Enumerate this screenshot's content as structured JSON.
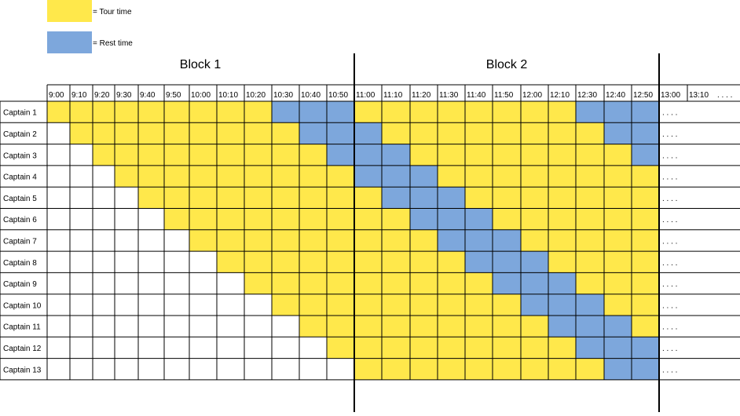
{
  "legend": [
    {
      "label": "= Tour time",
      "color": "#FFE84B"
    },
    {
      "label": "= Rest time",
      "color": "#7DA7DC"
    }
  ],
  "blocks": [
    "Block 1",
    "Block 2"
  ],
  "times": [
    "9:00",
    "9:10",
    "9:20",
    "9:30",
    "9:40",
    "9:50",
    "10:00",
    "10:10",
    "10:20",
    "10:30",
    "10:40",
    "10:50",
    "11:00",
    "11:10",
    "11:20",
    "11:30",
    "11:40",
    "11:50",
    "12:00",
    "12:10",
    "12:30",
    "12:40",
    "12:50",
    "13:00",
    "13:10"
  ],
  "times_more": ". . . .",
  "row_more": ". . . .",
  "captains": [
    {
      "name": "Captain 1",
      "segments": [
        [
          0,
          8,
          "tour"
        ],
        [
          9,
          11,
          "rest"
        ],
        [
          12,
          19,
          "tour"
        ],
        [
          20,
          22,
          "rest"
        ]
      ]
    },
    {
      "name": "Captain 2",
      "segments": [
        [
          1,
          9,
          "tour"
        ],
        [
          10,
          11,
          "rest"
        ],
        [
          12,
          12,
          "rest"
        ],
        [
          13,
          20,
          "tour"
        ],
        [
          21,
          22,
          "rest"
        ]
      ]
    },
    {
      "name": "Captain 3",
      "segments": [
        [
          2,
          10,
          "tour"
        ],
        [
          11,
          11,
          "rest"
        ],
        [
          12,
          13,
          "rest"
        ],
        [
          14,
          21,
          "tour"
        ],
        [
          22,
          22,
          "rest"
        ]
      ]
    },
    {
      "name": "Captain 4",
      "segments": [
        [
          3,
          11,
          "tour"
        ],
        [
          12,
          14,
          "rest"
        ],
        [
          15,
          22,
          "tour"
        ]
      ]
    },
    {
      "name": "Captain 5",
      "segments": [
        [
          4,
          11,
          "tour"
        ],
        [
          12,
          12,
          "tour"
        ],
        [
          13,
          15,
          "rest"
        ],
        [
          16,
          22,
          "tour"
        ]
      ]
    },
    {
      "name": "Captain 6",
      "segments": [
        [
          5,
          11,
          "tour"
        ],
        [
          12,
          13,
          "tour"
        ],
        [
          14,
          16,
          "rest"
        ],
        [
          17,
          22,
          "tour"
        ]
      ]
    },
    {
      "name": "Captain 7",
      "segments": [
        [
          6,
          11,
          "tour"
        ],
        [
          12,
          14,
          "tour"
        ],
        [
          15,
          17,
          "rest"
        ],
        [
          18,
          22,
          "tour"
        ]
      ]
    },
    {
      "name": "Captain 8",
      "segments": [
        [
          7,
          11,
          "tour"
        ],
        [
          12,
          15,
          "tour"
        ],
        [
          16,
          18,
          "rest"
        ],
        [
          19,
          22,
          "tour"
        ]
      ]
    },
    {
      "name": "Captain 9",
      "segments": [
        [
          8,
          11,
          "tour"
        ],
        [
          12,
          16,
          "tour"
        ],
        [
          17,
          19,
          "rest"
        ],
        [
          20,
          22,
          "tour"
        ]
      ]
    },
    {
      "name": "Captain 10",
      "segments": [
        [
          9,
          11,
          "tour"
        ],
        [
          12,
          17,
          "tour"
        ],
        [
          18,
          20,
          "rest"
        ],
        [
          21,
          22,
          "tour"
        ]
      ]
    },
    {
      "name": "Captain 11",
      "segments": [
        [
          10,
          11,
          "tour"
        ],
        [
          12,
          18,
          "tour"
        ],
        [
          19,
          21,
          "rest"
        ],
        [
          22,
          22,
          "tour"
        ]
      ]
    },
    {
      "name": "Captain 12",
      "segments": [
        [
          11,
          11,
          "tour"
        ],
        [
          12,
          19,
          "tour"
        ],
        [
          20,
          22,
          "rest"
        ]
      ]
    },
    {
      "name": "Captain 13",
      "segments": [
        [
          12,
          20,
          "tour"
        ],
        [
          21,
          22,
          "rest"
        ]
      ]
    }
  ]
}
